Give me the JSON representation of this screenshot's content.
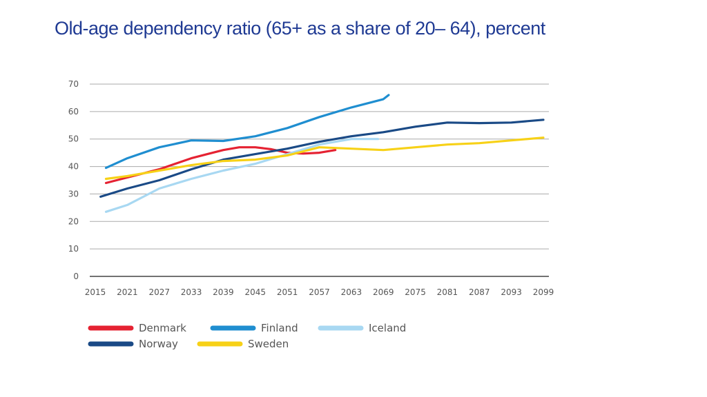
{
  "page": {
    "title": "Old-age dependency ratio (65+ as a share of 20– 64), percent"
  },
  "chart_data": {
    "type": "line",
    "title": "Old-age dependency ratio (65+ as a share of 20– 64), percent",
    "xlabel": "",
    "ylabel": "",
    "categories": [
      "2015",
      "2021",
      "2027",
      "2033",
      "2039",
      "2045",
      "2051",
      "2057",
      "2063",
      "2069",
      "2075",
      "2081",
      "2087",
      "2093",
      "2099"
    ],
    "xlim": [
      2015,
      2099
    ],
    "ylim": [
      0,
      70
    ],
    "yticks": [
      "0",
      "10",
      "20",
      "30",
      "40",
      "50",
      "60",
      "70"
    ],
    "grid": "horizontal",
    "legend_position": "bottom-left",
    "series": [
      {
        "name": "Denmark",
        "color": "#e52232",
        "x": [
          2017,
          2021,
          2027,
          2033,
          2036,
          2039,
          2042,
          2045,
          2048,
          2051,
          2054,
          2057,
          2060
        ],
        "values": [
          34,
          36,
          39,
          43,
          44.5,
          46,
          47,
          47,
          46.3,
          45,
          44.7,
          45,
          46
        ]
      },
      {
        "name": "Finland",
        "color": "#1f8ed0",
        "x": [
          2017,
          2021,
          2027,
          2033,
          2039,
          2045,
          2051,
          2057,
          2063,
          2069,
          2070
        ],
        "values": [
          39.5,
          43,
          47,
          49.5,
          49.3,
          51,
          54,
          58,
          61.5,
          64.5,
          66
        ]
      },
      {
        "name": "Iceland",
        "color": "#a8d8f2",
        "x": [
          2017,
          2021,
          2027,
          2033,
          2039,
          2045,
          2051,
          2057,
          2063,
          2068
        ],
        "values": [
          23.5,
          26,
          32,
          35.5,
          38.5,
          41,
          44.5,
          48,
          50,
          50
        ]
      },
      {
        "name": "Norway",
        "color": "#1a4a86",
        "x": [
          2016,
          2021,
          2027,
          2033,
          2039,
          2045,
          2051,
          2057,
          2063,
          2069,
          2075,
          2081,
          2087,
          2093,
          2099
        ],
        "values": [
          29,
          32,
          35,
          39,
          42.5,
          44.5,
          46.5,
          49,
          51,
          52.5,
          54.5,
          56,
          55.8,
          56,
          57
        ]
      },
      {
        "name": "Sweden",
        "color": "#f7d117",
        "x": [
          2017,
          2021,
          2027,
          2033,
          2039,
          2045,
          2051,
          2057,
          2063,
          2069,
          2075,
          2081,
          2087,
          2093,
          2099
        ],
        "values": [
          35.5,
          36.5,
          38.5,
          40.5,
          42,
          42.5,
          44,
          47,
          46.5,
          46,
          47,
          48,
          48.5,
          49.5,
          50.5
        ]
      }
    ]
  }
}
